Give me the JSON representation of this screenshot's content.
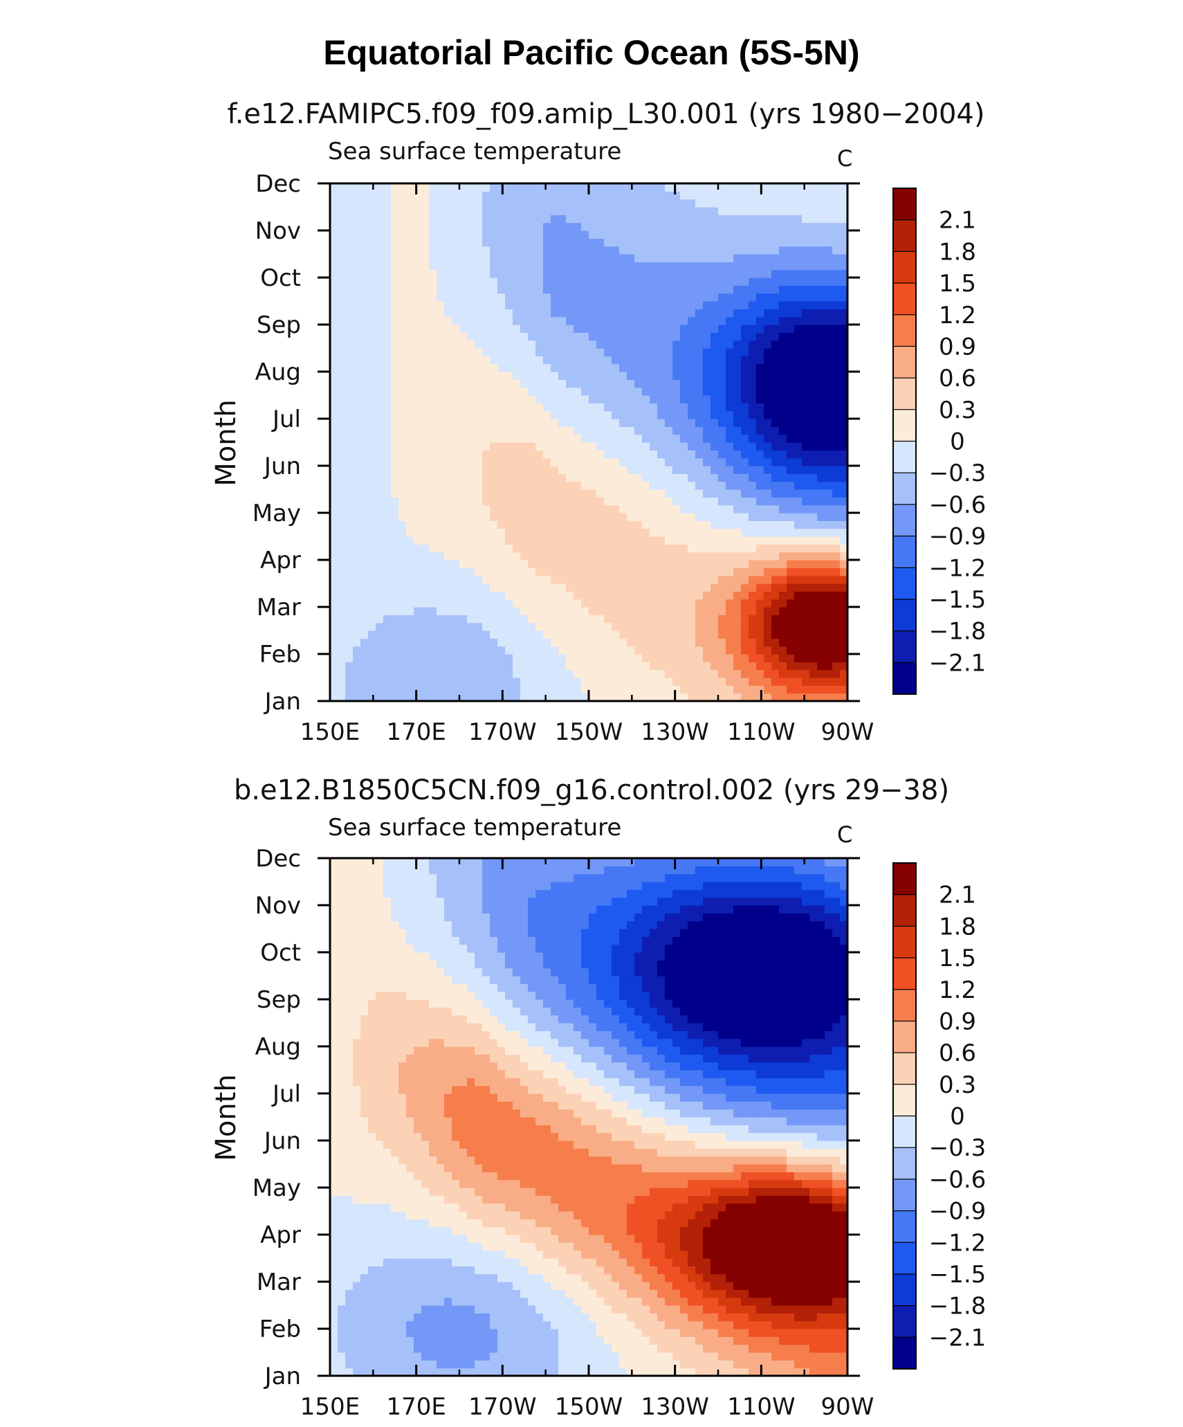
{
  "figure_title": "Equatorial Pacific Ocean (5S-5N)",
  "chart_data": [
    {
      "type": "heatmap",
      "title": "f.e12.FAMIPC5.f09_f09.amip_L30.001 (yrs 1980−2004)",
      "subtitle": "Sea surface temperature",
      "units": "C",
      "xlabel": "",
      "ylabel": "Month",
      "x_ticks": [
        "150E",
        "170E",
        "170W",
        "150W",
        "130W",
        "110W",
        "90W"
      ],
      "x_lon": [
        150,
        170,
        190,
        210,
        230,
        250,
        270
      ],
      "xlim": [
        150,
        270
      ],
      "y_ticks": [
        "Jan",
        "Feb",
        "Mar",
        "Apr",
        "May",
        "Jun",
        "Jul",
        "Aug",
        "Sep",
        "Oct",
        "Nov",
        "Dec"
      ],
      "colorbar_labels": [
        "2.1",
        "1.8",
        "1.5",
        "1.2",
        "0.9",
        "0.6",
        "0.3",
        "0",
        "−0.3",
        "−0.6",
        "−0.9",
        "−1.2",
        "−1.5",
        "−1.8",
        "−2.1"
      ],
      "levels": [
        -2.1,
        -1.8,
        -1.5,
        -1.2,
        -0.9,
        -0.6,
        -0.3,
        0,
        0.3,
        0.6,
        0.9,
        1.2,
        1.5,
        1.8,
        2.1
      ],
      "features": {
        "warm_max": {
          "lon": 265,
          "month": 2.7,
          "amp": 2.7,
          "lon_scale": 13,
          "month_scale": 1.0
        },
        "warm_band": {
          "start_lon": 178,
          "start_month": 6.6,
          "end_lon": 270,
          "end_month": 1.2,
          "amp": 0.55,
          "width_months": 2.0
        },
        "cold_max": {
          "lon": 266,
          "month": 7.8,
          "amp": -2.4,
          "lon_scale": 17,
          "month_scale": 1.5
        },
        "cold_band": {
          "start_lon": 185,
          "start_month": 11,
          "end_lon": 270,
          "end_month": 6.0,
          "amp": -0.7,
          "width_months": 2.6
        },
        "west_cold_pool": {
          "lon": 175,
          "month": 1.4,
          "amp": -0.6,
          "lon_scale": 18,
          "month_scale": 1.4
        }
      }
    },
    {
      "type": "heatmap",
      "title": "b.e12.B1850C5CN.f09_g16.control.002 (yrs 29−38)",
      "subtitle": "Sea surface temperature",
      "units": "C",
      "xlabel": "",
      "ylabel": "Month",
      "x_ticks": [
        "150E",
        "170E",
        "170W",
        "150W",
        "130W",
        "110W",
        "90W"
      ],
      "x_lon": [
        150,
        170,
        190,
        210,
        230,
        250,
        270
      ],
      "xlim": [
        150,
        270
      ],
      "y_ticks": [
        "Jan",
        "Feb",
        "Mar",
        "Apr",
        "May",
        "Jun",
        "Jul",
        "Aug",
        "Sep",
        "Oct",
        "Nov",
        "Dec"
      ],
      "colorbar_labels": [
        "2.1",
        "1.8",
        "1.5",
        "1.2",
        "0.9",
        "0.6",
        "0.3",
        "0",
        "−0.3",
        "−0.6",
        "−0.9",
        "−1.2",
        "−1.5",
        "−1.8",
        "−2.1"
      ],
      "levels": [
        -2.1,
        -1.8,
        -1.5,
        -1.2,
        -0.9,
        -0.6,
        -0.3,
        0,
        0.3,
        0.6,
        0.9,
        1.2,
        1.5,
        1.8,
        2.1
      ],
      "features": {
        "warm_max": {
          "lon": 260,
          "month": 4.0,
          "amp": 2.6,
          "lon_scale": 18,
          "month_scale": 1.1
        },
        "warm_band": {
          "start_lon": 162,
          "start_month": 7.6,
          "end_lon": 270,
          "end_month": 2.0,
          "amp": 1.15,
          "width_months": 1.7
        },
        "cold_max": {
          "lon": 252,
          "month": 9.7,
          "amp": -2.3,
          "lon_scale": 24,
          "month_scale": 1.6
        },
        "cold_band": {
          "start_lon": 175,
          "start_month": 12,
          "end_lon": 270,
          "end_month": 7.2,
          "amp": -0.8,
          "width_months": 2.4
        },
        "west_cold_pool": {
          "lon": 180,
          "month": 2.0,
          "amp": -0.7,
          "lon_scale": 22,
          "month_scale": 1.5
        }
      }
    }
  ]
}
